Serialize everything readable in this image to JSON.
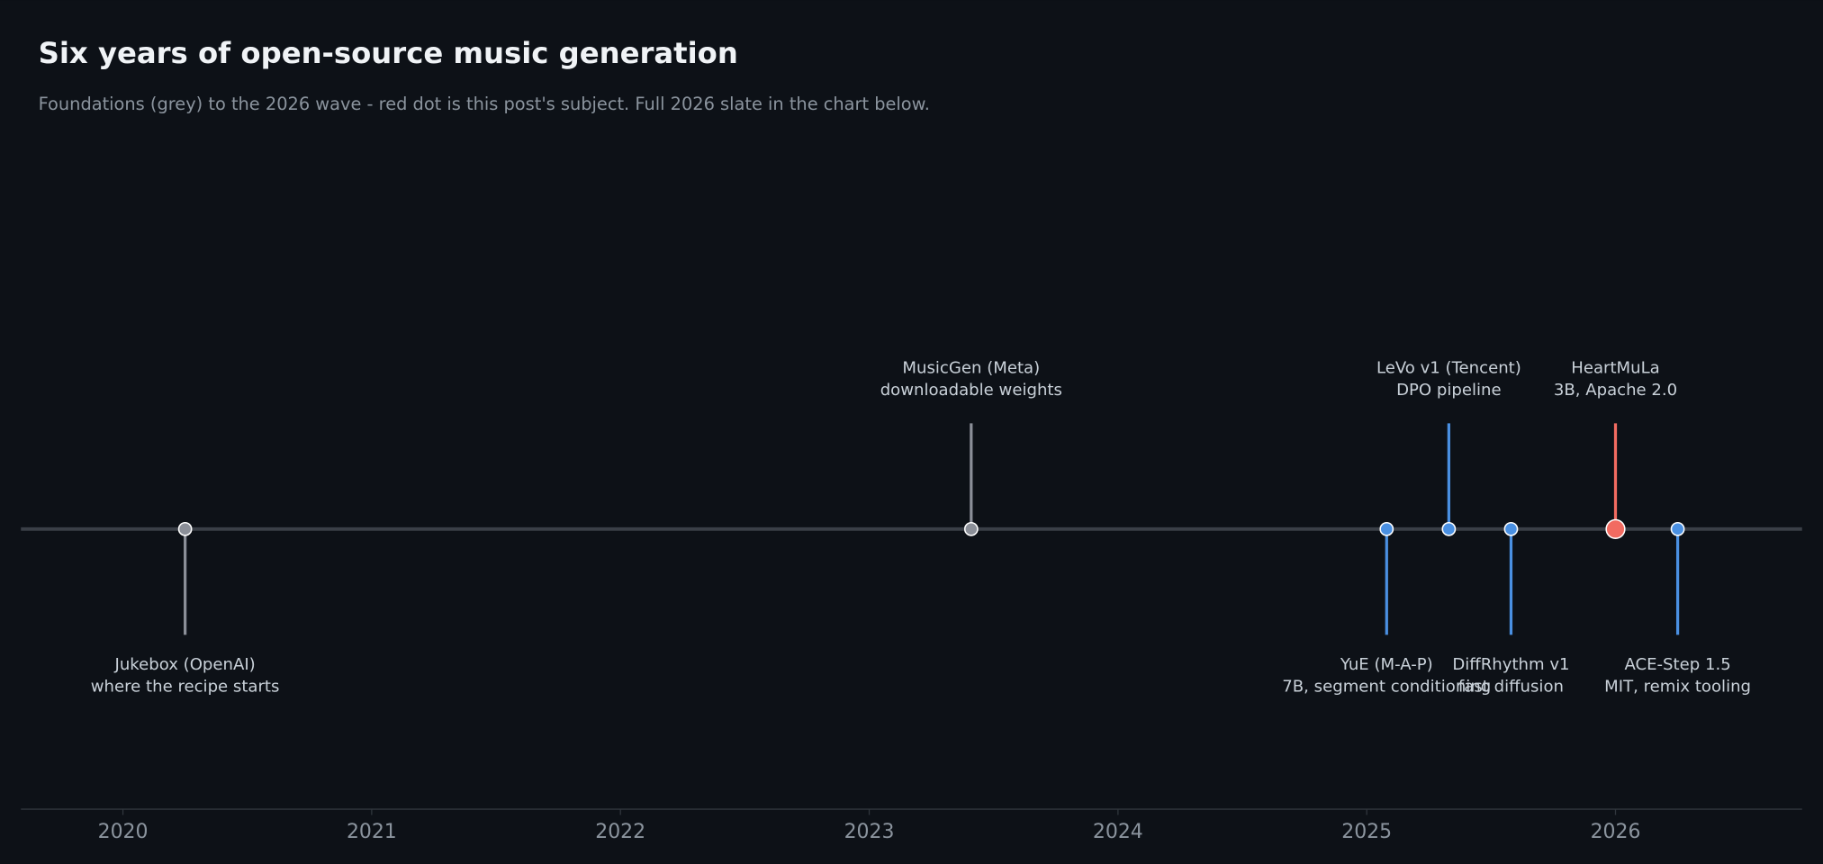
{
  "chart_data": {
    "type": "timeline",
    "title": "Six years of open-source music generation",
    "subtitle": "Foundations (grey) to the 2026 wave - red dot is this post's subject. Full 2026 slate in the chart below.",
    "xlim": [
      2019.59,
      2026.75
    ],
    "xticks": [
      2020,
      2021,
      2022,
      2023,
      2024,
      2025,
      2026
    ],
    "events": [
      {
        "name": "Jukebox (OpenAI)",
        "detail": "where the recipe starts",
        "x": 2020.25,
        "color": "#8b8f98",
        "side": "below"
      },
      {
        "name": "MusicGen (Meta)",
        "detail": "downloadable weights",
        "x": 2023.41,
        "color": "#8b8f98",
        "side": "above"
      },
      {
        "name": "YuE (M-A-P)",
        "detail": "7B, segment conditioning",
        "x": 2025.08,
        "color": "#4a90e2",
        "side": "below"
      },
      {
        "name": "LeVo v1 (Tencent)",
        "detail": "DPO pipeline",
        "x": 2025.33,
        "color": "#4a90e2",
        "side": "above"
      },
      {
        "name": "DiffRhythm v1",
        "detail": "fast diffusion",
        "x": 2025.58,
        "color": "#4a90e2",
        "side": "below"
      },
      {
        "name": "HeartMuLa",
        "detail": "3B, Apache 2.0",
        "x": 2026.0,
        "color": "#f26b61",
        "side": "above",
        "highlight": true
      },
      {
        "name": "ACE-Step 1.5",
        "detail": "MIT, remix tooling",
        "x": 2026.25,
        "color": "#4a90e2",
        "side": "below"
      }
    ]
  }
}
